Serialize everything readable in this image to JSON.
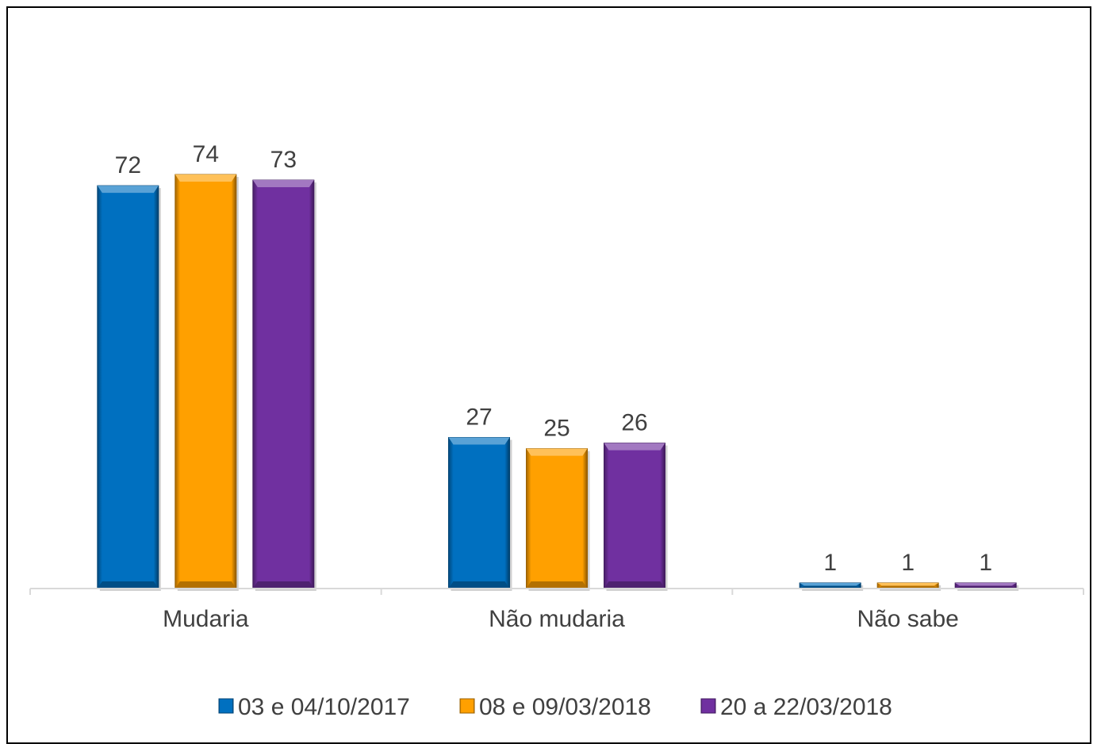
{
  "chart_data": {
    "type": "bar",
    "categories": [
      "Mudaria",
      "Não mudaria",
      "Não sabe"
    ],
    "series": [
      {
        "name": "03 e 04/10/2017",
        "values": [
          72,
          27,
          1
        ],
        "color": "#0070C0"
      },
      {
        "name": "08 e 09/03/2018",
        "values": [
          74,
          25,
          1
        ],
        "color": "#FFA000"
      },
      {
        "name": "20 a 22/03/2018",
        "values": [
          73,
          26,
          1
        ],
        "color": "#7030A0"
      }
    ],
    "ylim": [
      0,
      74
    ],
    "grid": false,
    "legend": "bottom"
  }
}
